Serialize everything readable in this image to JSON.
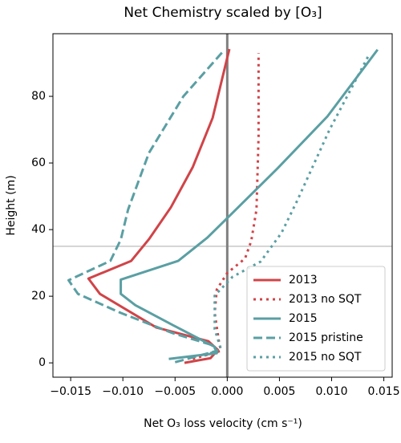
{
  "chart_data": {
    "type": "line",
    "title": "Net Chemistry scaled by [O₃]",
    "x_label": "Net O₃ loss velocity (cm s⁻¹)",
    "y_label": "Height (m)",
    "xlim": [
      -0.0167,
      0.0158
    ],
    "ylim": [
      -4.3,
      98.8
    ],
    "xticks": [
      {
        "value": -0.015,
        "label": "−0.015"
      },
      {
        "value": -0.01,
        "label": "−0.010"
      },
      {
        "value": -0.005,
        "label": "−0.005"
      },
      {
        "value": 0,
        "label": "0.000"
      },
      {
        "value": 0.005,
        "label": "0.005"
      },
      {
        "value": 0.01,
        "label": "0.010"
      },
      {
        "value": 0.015,
        "label": "0.015"
      }
    ],
    "yticks": [
      0,
      20,
      40,
      60,
      80
    ],
    "vline": 0,
    "hline": 35,
    "legend": "lower right",
    "series": [
      {
        "name": "2013",
        "color": "#d04448",
        "style": "solid",
        "x": [
          -0.0041,
          -0.0016,
          -0.0009,
          -0.0018,
          -0.0068,
          -0.0122,
          -0.0133,
          -0.0092,
          -0.0075,
          -0.0054,
          -0.0033,
          -0.0014,
          0.0002
        ],
        "y": [
          0,
          1.4,
          3.9,
          6.5,
          10.6,
          20.7,
          25.3,
          30.6,
          37.1,
          46.7,
          58.8,
          73.5,
          94.2
        ]
      },
      {
        "name": "2013 no SQT",
        "color": "#d04448",
        "style": "dotted",
        "x": [
          -0.0033,
          -0.0006,
          -0.0008,
          -0.0012,
          -0.001,
          0,
          0.0017,
          0.0023,
          0.0028,
          0.003,
          0.003
        ],
        "y": [
          1.2,
          3.6,
          6.5,
          15,
          22,
          27,
          31.3,
          36.6,
          46,
          68,
          93
        ]
      },
      {
        "name": "2015",
        "color": "#5a9fa3",
        "style": "solid",
        "x": [
          -0.0056,
          -0.001,
          -0.0012,
          -0.0052,
          -0.0088,
          -0.0102,
          -0.0102,
          -0.0047,
          -0.0019,
          0.0005,
          0.0048,
          0.0096,
          0.0144
        ],
        "y": [
          1.2,
          2.9,
          4.8,
          11.3,
          17.3,
          20.7,
          25,
          30.6,
          37.6,
          45,
          58.3,
          74,
          94
        ]
      },
      {
        "name": "2015 pristine",
        "color": "#5a9fa3",
        "style": "dashed",
        "x": [
          -0.005,
          -0.001,
          -0.0014,
          -0.0052,
          -0.0102,
          -0.0143,
          -0.0152,
          -0.0112,
          -0.0102,
          -0.0095,
          -0.0075,
          -0.0042,
          -0.0004
        ],
        "y": [
          0.2,
          3.6,
          5.3,
          8.9,
          15,
          20.7,
          24.8,
          30.6,
          37,
          46,
          63,
          80,
          93.5
        ]
      },
      {
        "name": "2015 no SQT",
        "color": "#5a9fa3",
        "style": "dotted",
        "x": [
          -0.0022,
          -0.0006,
          -0.0012,
          -0.0012,
          0.0005,
          0.0032,
          0.0052,
          0.0067,
          0.0098,
          0.0135
        ],
        "y": [
          2.2,
          4.1,
          10.1,
          20.2,
          25.8,
          30.4,
          39,
          48.7,
          70,
          92
        ]
      }
    ]
  }
}
